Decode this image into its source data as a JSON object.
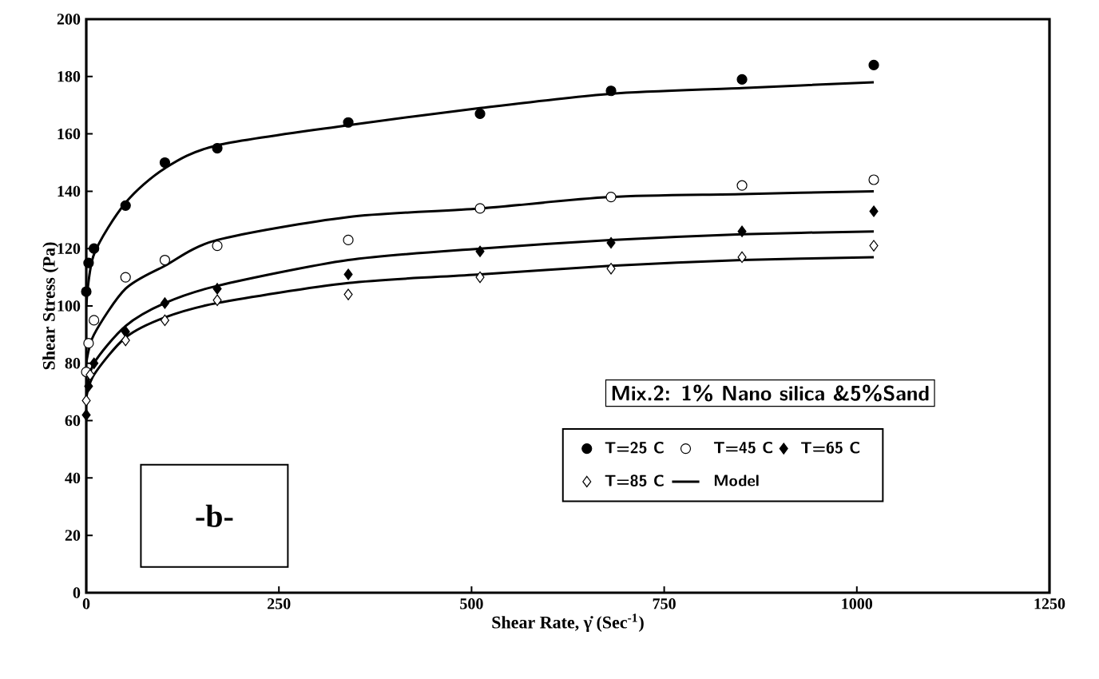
{
  "chart_data": {
    "type": "scatter",
    "xlabel": "Shear Rate, γ̇ (Sec$^{-1}$)",
    "ylabel": "Shear Stress (Pa)",
    "xlim": [
      0,
      1250
    ],
    "xticks": [
      0,
      250,
      500,
      750,
      1000,
      1250
    ],
    "ylim": [
      0,
      200
    ],
    "yticks": [
      0,
      20,
      40,
      60,
      80,
      100,
      120,
      140,
      160,
      180,
      200
    ],
    "grid": false,
    "legend": "right",
    "annotations": [
      "Mix.2: 1% Nano silica &5%Sand",
      "-b-"
    ],
    "series": [
      {
        "name": "T=25 C",
        "color": "#000000",
        "marker": "circle",
        "x": [
          0,
          3,
          10,
          51,
          102,
          170,
          340,
          511,
          681,
          851,
          1022
        ],
        "values": [
          105,
          115,
          120,
          135,
          150,
          155,
          164,
          167,
          175,
          179,
          184
        ]
      },
      {
        "name": "T=45 C",
        "color": "#ffffff",
        "marker": "circle",
        "x": [
          0,
          3,
          10,
          51,
          102,
          170,
          340,
          511,
          681,
          851,
          1022
        ],
        "values": [
          77,
          87,
          95,
          110,
          116,
          121,
          123,
          134,
          138,
          142,
          144
        ]
      },
      {
        "name": "T=65 C",
        "color": "#000000",
        "marker": "diamond",
        "x": [
          0,
          3,
          10,
          51,
          102,
          170,
          340,
          511,
          681,
          851,
          1022
        ],
        "values": [
          62,
          72,
          80,
          91,
          101,
          106,
          111,
          119,
          122,
          126,
          133
        ]
      },
      {
        "name": "T=85 C",
        "color": "#ffffff",
        "marker": "diamond",
        "x": [
          0,
          5,
          51,
          102,
          170,
          340,
          511,
          681,
          851,
          1022
        ],
        "values": [
          67,
          76,
          88,
          95,
          102,
          104,
          110,
          113,
          117,
          121
        ]
      },
      {
        "name": "Model",
        "type": "line",
        "color": "#000000",
        "marker": "none",
        "x": [
          0,
          10,
          51,
          102,
          170,
          340,
          511,
          681,
          851,
          1022
        ],
        "values": [
          100,
          118,
          136,
          148,
          156,
          163,
          169,
          174,
          176,
          178
        ]
      },
      {
        "type": "line",
        "color": "#000000",
        "marker": "none",
        "x": [
          0,
          10,
          51,
          102,
          170,
          340,
          511,
          681,
          851,
          1022
        ],
        "values": [
          80,
          90,
          106,
          114,
          123,
          131,
          134,
          138,
          139,
          140
        ]
      },
      {
        "type": "line",
        "color": "#000000",
        "marker": "none",
        "x": [
          0,
          10,
          51,
          102,
          170,
          340,
          511,
          681,
          851,
          1022
        ],
        "values": [
          70,
          80,
          93,
          101,
          107,
          116,
          120,
          123,
          125,
          126
        ]
      },
      {
        "type": "line",
        "color": "#000000",
        "marker": "none",
        "x": [
          0,
          10,
          51,
          102,
          170,
          340,
          511,
          681,
          851,
          1022
        ],
        "values": [
          68,
          76,
          89,
          96,
          101,
          108,
          111,
          114,
          116,
          117
        ]
      }
    ]
  }
}
